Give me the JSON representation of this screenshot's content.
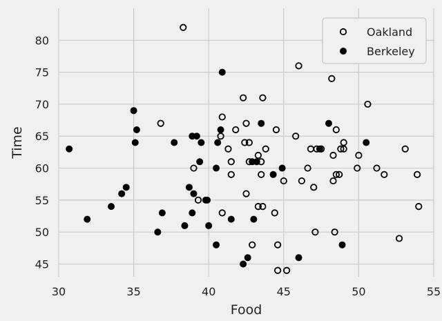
{
  "chart_data": {
    "type": "scatter",
    "title": "",
    "xlabel": "Food",
    "ylabel": "Time",
    "xlim": [
      30,
      55
    ],
    "ylim": [
      43,
      85
    ],
    "xticks": [
      "30",
      "35",
      "40",
      "45",
      "50",
      "55"
    ],
    "yticks": [
      "45",
      "50",
      "55",
      "60",
      "65",
      "70",
      "75",
      "80"
    ],
    "grid": true,
    "legend_position": "top-right",
    "background_color": "#f0f0f0",
    "grid_color": "#cbcbcb",
    "series": [
      {
        "name": "Oakland",
        "marker": "open-circle",
        "color": "#000000",
        "points": [
          [
            38.3,
            82
          ],
          [
            46.0,
            76
          ],
          [
            48.2,
            74
          ],
          [
            42.3,
            71
          ],
          [
            43.6,
            71
          ],
          [
            50.6,
            70
          ],
          [
            36.8,
            67
          ],
          [
            42.5,
            67
          ],
          [
            40.9,
            68
          ],
          [
            48.5,
            66
          ],
          [
            45.8,
            65
          ],
          [
            41.8,
            66
          ],
          [
            44.5,
            66
          ],
          [
            40.8,
            65
          ],
          [
            42.4,
            64
          ],
          [
            42.7,
            64
          ],
          [
            49.0,
            64
          ],
          [
            41.3,
            63
          ],
          [
            43.8,
            63
          ],
          [
            46.8,
            63
          ],
          [
            47.2,
            63
          ],
          [
            47.5,
            63
          ],
          [
            48.8,
            63
          ],
          [
            49.0,
            63
          ],
          [
            53.1,
            63
          ],
          [
            43.3,
            62
          ],
          [
            48.3,
            62
          ],
          [
            50.0,
            62
          ],
          [
            41.5,
            61
          ],
          [
            42.7,
            61
          ],
          [
            43.5,
            61
          ],
          [
            39.0,
            60
          ],
          [
            46.6,
            60
          ],
          [
            49.9,
            60
          ],
          [
            51.2,
            60
          ],
          [
            41.5,
            59
          ],
          [
            43.5,
            59
          ],
          [
            48.5,
            59
          ],
          [
            48.7,
            59
          ],
          [
            51.7,
            59
          ],
          [
            53.9,
            59
          ],
          [
            45.0,
            58
          ],
          [
            46.2,
            58
          ],
          [
            48.3,
            58
          ],
          [
            47.0,
            57
          ],
          [
            42.5,
            56
          ],
          [
            39.3,
            55
          ],
          [
            43.3,
            54
          ],
          [
            43.6,
            54
          ],
          [
            54.0,
            54
          ],
          [
            40.9,
            53
          ],
          [
            44.4,
            53
          ],
          [
            47.1,
            50
          ],
          [
            48.4,
            50
          ],
          [
            52.7,
            49
          ],
          [
            42.9,
            48
          ],
          [
            44.6,
            48
          ],
          [
            44.6,
            44
          ],
          [
            45.2,
            44
          ]
        ]
      },
      {
        "name": "Berkeley",
        "marker": "filled-circle",
        "color": "#000000",
        "points": [
          [
            30.7,
            63
          ],
          [
            31.9,
            52
          ],
          [
            33.5,
            54
          ],
          [
            34.2,
            56
          ],
          [
            34.5,
            57
          ],
          [
            35.0,
            69
          ],
          [
            35.2,
            66
          ],
          [
            35.1,
            64
          ],
          [
            36.6,
            50
          ],
          [
            36.9,
            53
          ],
          [
            37.7,
            64
          ],
          [
            38.4,
            51
          ],
          [
            38.7,
            57
          ],
          [
            38.9,
            65
          ],
          [
            39.2,
            65
          ],
          [
            38.9,
            53
          ],
          [
            39.0,
            56
          ],
          [
            39.4,
            61
          ],
          [
            39.5,
            64
          ],
          [
            39.8,
            55
          ],
          [
            39.9,
            55
          ],
          [
            40.0,
            51
          ],
          [
            40.5,
            60
          ],
          [
            40.6,
            64
          ],
          [
            40.8,
            66
          ],
          [
            40.9,
            75
          ],
          [
            40.5,
            48
          ],
          [
            41.5,
            52
          ],
          [
            42.3,
            45
          ],
          [
            42.6,
            46
          ],
          [
            42.9,
            61
          ],
          [
            43.0,
            52
          ],
          [
            43.2,
            61
          ],
          [
            43.5,
            67
          ],
          [
            44.3,
            59
          ],
          [
            44.9,
            60
          ],
          [
            46.0,
            46
          ],
          [
            47.4,
            63
          ],
          [
            48.0,
            67
          ],
          [
            48.9,
            48
          ],
          [
            50.5,
            64
          ]
        ]
      }
    ]
  }
}
